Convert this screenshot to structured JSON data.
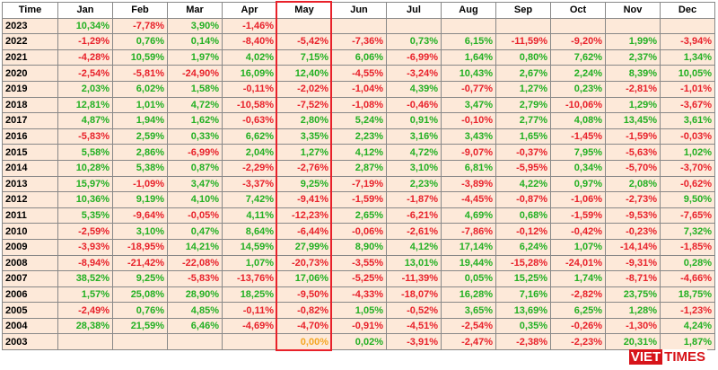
{
  "table": {
    "header": [
      "Time",
      "Jan",
      "Feb",
      "Mar",
      "Apr",
      "May",
      "Jun",
      "Jul",
      "Aug",
      "Sep",
      "Oct",
      "Nov",
      "Dec"
    ],
    "rows": [
      [
        "2023",
        "10,34%",
        "-7,78%",
        "3,90%",
        "-1,46%",
        null,
        null,
        null,
        null,
        null,
        null,
        null,
        null
      ],
      [
        "2022",
        "-1,29%",
        "0,76%",
        "0,14%",
        "-8,40%",
        "-5,42%",
        "-7,36%",
        "0,73%",
        "6,15%",
        "-11,59%",
        "-9,20%",
        "1,99%",
        "-3,94%"
      ],
      [
        "2021",
        "-4,28%",
        "10,59%",
        "1,97%",
        "4,02%",
        "7,15%",
        "6,06%",
        "-6,99%",
        "1,64%",
        "0,80%",
        "7,62%",
        "2,37%",
        "1,34%"
      ],
      [
        "2020",
        "-2,54%",
        "-5,81%",
        "-24,90%",
        "16,09%",
        "12,40%",
        "-4,55%",
        "-3,24%",
        "10,43%",
        "2,67%",
        "2,24%",
        "8,39%",
        "10,05%"
      ],
      [
        "2019",
        "2,03%",
        "6,02%",
        "1,58%",
        "-0,11%",
        "-2,02%",
        "-1,04%",
        "4,39%",
        "-0,77%",
        "1,27%",
        "0,23%",
        "-2,81%",
        "-1,01%"
      ],
      [
        "2018",
        "12,81%",
        "1,01%",
        "4,72%",
        "-10,58%",
        "-7,52%",
        "-1,08%",
        "-0,46%",
        "3,47%",
        "2,79%",
        "-10,06%",
        "1,29%",
        "-3,67%"
      ],
      [
        "2017",
        "4,87%",
        "1,94%",
        "1,62%",
        "-0,63%",
        "2,80%",
        "5,24%",
        "0,91%",
        "-0,10%",
        "2,77%",
        "4,08%",
        "13,45%",
        "3,61%"
      ],
      [
        "2016",
        "-5,83%",
        "2,59%",
        "0,33%",
        "6,62%",
        "3,35%",
        "2,23%",
        "3,16%",
        "3,43%",
        "1,65%",
        "-1,45%",
        "-1,59%",
        "-0,03%"
      ],
      [
        "2015",
        "5,58%",
        "2,86%",
        "-6,99%",
        "2,04%",
        "1,27%",
        "4,12%",
        "4,72%",
        "-9,07%",
        "-0,37%",
        "7,95%",
        "-5,63%",
        "1,02%"
      ],
      [
        "2014",
        "10,28%",
        "5,38%",
        "0,87%",
        "-2,29%",
        "-2,76%",
        "2,87%",
        "3,10%",
        "6,81%",
        "-5,95%",
        "0,34%",
        "-5,70%",
        "-3,70%"
      ],
      [
        "2013",
        "15,97%",
        "-1,09%",
        "3,47%",
        "-3,37%",
        "9,25%",
        "-7,19%",
        "2,23%",
        "-3,89%",
        "4,22%",
        "0,97%",
        "2,08%",
        "-0,62%"
      ],
      [
        "2012",
        "10,36%",
        "9,19%",
        "4,10%",
        "7,42%",
        "-9,41%",
        "-1,59%",
        "-1,87%",
        "-4,45%",
        "-0,87%",
        "-1,06%",
        "-2,73%",
        "9,50%"
      ],
      [
        "2011",
        "5,35%",
        "-9,64%",
        "-0,05%",
        "4,11%",
        "-12,23%",
        "2,65%",
        "-6,21%",
        "4,69%",
        "0,68%",
        "-1,59%",
        "-9,53%",
        "-7,65%"
      ],
      [
        "2010",
        "-2,59%",
        "3,10%",
        "0,47%",
        "8,64%",
        "-6,44%",
        "-0,06%",
        "-2,61%",
        "-7,86%",
        "-0,12%",
        "-0,42%",
        "-0,23%",
        "7,32%"
      ],
      [
        "2009",
        "-3,93%",
        "-18,95%",
        "14,21%",
        "14,59%",
        "27,99%",
        "8,90%",
        "4,12%",
        "17,14%",
        "6,24%",
        "1,07%",
        "-14,14%",
        "-1,85%"
      ],
      [
        "2008",
        "-8,94%",
        "-21,42%",
        "-22,08%",
        "1,07%",
        "-20,73%",
        "-3,55%",
        "13,01%",
        "19,44%",
        "-15,28%",
        "-24,01%",
        "-9,31%",
        "0,28%"
      ],
      [
        "2007",
        "38,52%",
        "9,25%",
        "-5,83%",
        "-13,76%",
        "17,06%",
        "-5,25%",
        "-11,39%",
        "0,05%",
        "15,25%",
        "1,74%",
        "-8,71%",
        "-4,66%"
      ],
      [
        "2006",
        "1,57%",
        "25,08%",
        "28,90%",
        "18,25%",
        "-9,50%",
        "-4,33%",
        "-18,07%",
        "16,28%",
        "7,16%",
        "-2,82%",
        "23,75%",
        "18,75%"
      ],
      [
        "2005",
        "-2,49%",
        "0,76%",
        "4,85%",
        "-0,11%",
        "-0,82%",
        "1,05%",
        "-0,52%",
        "3,65%",
        "13,69%",
        "6,25%",
        "1,28%",
        "-1,23%"
      ],
      [
        "2004",
        "28,38%",
        "21,59%",
        "6,46%",
        "-4,69%",
        "-4,70%",
        "-0,91%",
        "-4,51%",
        "-2,54%",
        "0,35%",
        "-0,26%",
        "-1,30%",
        "4,24%"
      ],
      [
        "2003",
        null,
        null,
        null,
        null,
        "0,00%",
        "0,02%",
        "-3,91%",
        "-2,47%",
        "-2,38%",
        "-2,23%",
        "20,31%",
        "1,87%"
      ]
    ]
  },
  "logo": {
    "left": "VIET",
    "right": "TIMES"
  }
}
